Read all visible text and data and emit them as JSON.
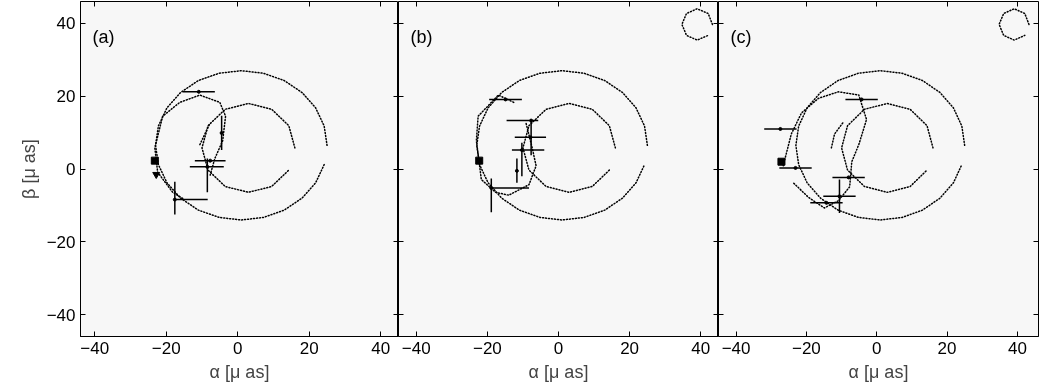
{
  "chart_data": [
    {
      "type": "scatter",
      "annotations": [
        "(a)"
      ],
      "xlabel": "α [μ as]",
      "ylabel": "β [μ as]",
      "xlim": [
        -44,
        45
      ],
      "ylim": [
        -46,
        46
      ],
      "xticks": [
        -40,
        -20,
        0,
        20,
        40
      ],
      "yticks": [
        -40,
        -20,
        0,
        20,
        40
      ],
      "grid": false,
      "series": [
        {
          "type": "line",
          "line_style": "dotted",
          "color": "#000000",
          "x": [
            25,
            24.2,
            21.8,
            18,
            13,
            7.2,
            1,
            -5.2,
            -11,
            -16,
            -19.8,
            -22.2,
            -23,
            -22.2,
            -19.8,
            -16,
            -11,
            -5.2,
            1,
            7.2,
            13,
            18,
            21.8,
            24.2
          ],
          "values": [
            6.5,
            11.8,
            16.8,
            21,
            24.3,
            26.3,
            27,
            26.3,
            24.3,
            21,
            16.8,
            11.8,
            6.5,
            1.2,
            -3.8,
            -8,
            -11.3,
            -13.3,
            -14,
            -13.3,
            -11.3,
            -8,
            -3.8,
            1.2
          ]
        },
        {
          "type": "line",
          "line_style": "dotted",
          "color": "#000000",
          "x": [
            16,
            14.3,
            9.5,
            3,
            -3.5,
            -8.3,
            -10,
            -8.3,
            -3.5,
            3,
            9.5,
            14.3
          ],
          "values": [
            5.8,
            11.9,
            16.4,
            18,
            16.4,
            11.9,
            5.8,
            -0.3,
            -4.8,
            -6.4,
            -4.8,
            -0.3
          ]
        },
        {
          "type": "line",
          "line_style": "dotted",
          "color": "#000000",
          "x": [
            -15.4,
            -18.2,
            -22.4,
            -23.2,
            -21,
            -16.2,
            -10.6,
            -5,
            -3.4,
            -4.2,
            -6.4,
            -7.8
          ],
          "values": [
            -8.1,
            -6.4,
            -0.9,
            5.8,
            14.5,
            18.3,
            20.3,
            18.3,
            14.5,
            7.8,
            2.9,
            -2
          ]
        },
        {
          "type": "line",
          "line_style": "dotted",
          "color": "#000000",
          "x": [
            -10.6,
            -7.8
          ],
          "values": [
            6.7,
            12.5
          ]
        },
        {
          "marker": "none",
          "color": "#000000",
          "x": [
            -10.9,
            -4.5,
            -7.7,
            -8.5,
            -17.6
          ],
          "values": [
            21.2,
            9.9,
            2.3,
            0.6,
            -8.4
          ],
          "xerrors": [
            4.5,
            null,
            4.3,
            [
              -13.4,
              -3.9
            ],
            [
              -17.6,
              -8.4
            ]
          ],
          "errors": [
            null,
            4.7,
            null,
            [
              -6.4,
              2.9
            ],
            [
              -12.5,
              -3.5
            ]
          ]
        },
        {
          "marker": "square",
          "color": "#000000",
          "x": [
            -23.2
          ],
          "values": [
            2.3
          ]
        },
        {
          "marker": "triangle",
          "color": "#000000",
          "x": [
            -22.8
          ],
          "values": [
            -1.5
          ]
        }
      ]
    },
    {
      "type": "scatter",
      "annotations": [
        "(b)"
      ],
      "xlabel": "α [μ as]",
      "xlim": [
        -45,
        45
      ],
      "ylim": [
        -46,
        46
      ],
      "xticks": [
        -40,
        -20,
        0,
        20,
        40
      ],
      "yticks": [
        -40,
        -20,
        0,
        20,
        40
      ],
      "tick_labels": "x",
      "grid": false,
      "series": [
        {
          "type": "line",
          "line_style": "dotted",
          "color": "#000000",
          "x": [
            25,
            24.2,
            21.8,
            18,
            13,
            7.2,
            1,
            -5.2,
            -11,
            -16,
            -19.8,
            -22.2,
            -23,
            -22.2,
            -19.8,
            -16,
            -11,
            -5.2,
            1,
            7.2,
            13,
            18,
            21.8,
            24.2
          ],
          "values": [
            6.5,
            11.8,
            16.8,
            21,
            24.3,
            26.3,
            27,
            26.3,
            24.3,
            21,
            16.8,
            11.8,
            6.5,
            1.2,
            -3.8,
            -8,
            -11.3,
            -13.3,
            -14,
            -13.3,
            -11.3,
            -8,
            -3.8,
            1.2
          ]
        },
        {
          "type": "line",
          "line_style": "dotted",
          "color": "#000000",
          "x": [
            16,
            14.3,
            9.5,
            3,
            -3.5,
            -8.3,
            -10,
            -8.3,
            -3.5,
            3,
            9.5,
            14.3
          ],
          "values": [
            5.8,
            11.9,
            16.4,
            18,
            16.4,
            11.9,
            5.8,
            -0.3,
            -4.8,
            -6.4,
            -4.8,
            -0.3
          ]
        },
        {
          "type": "line",
          "line_style": "dotted",
          "color": "#000000",
          "x": [
            -12.6,
            -16.9,
            -22.6,
            -23.1,
            -21.7,
            -17.7,
            -14,
            -8.3,
            -6.3,
            -7.4,
            -9.1
          ],
          "values": [
            18.3,
            20.3,
            14.5,
            7.8,
            -2.9,
            -6.4,
            -7.2,
            -4.3,
            0.9,
            5.8,
            12.5
          ]
        },
        {
          "type": "line",
          "line_style": "dotted",
          "color": "#000000",
          "x": [
            43.3,
            42.1,
            39,
            36,
            34.7,
            36,
            39,
            42.1
          ],
          "values": [
            39.7,
            42.7,
            44,
            42.7,
            39.7,
            36.7,
            35.4,
            36.7
          ]
        },
        {
          "marker": "none",
          "color": "#000000",
          "x": [
            -14.9,
            -7.7,
            -7.9,
            -10.3,
            -11.7,
            -18.9
          ],
          "values": [
            19.1,
            13.3,
            8.7,
            5.2,
            -0.5,
            -5.2
          ],
          "xerrors": [
            4.6,
            [
              -14.6,
              -5.7
            ],
            4.4,
            [
              -13.1,
              -4.0
            ],
            null,
            [
              -18.9,
              -8.3
            ]
          ],
          "errors": [
            null,
            [
              3.8,
              13.3
            ],
            null,
            [
              -2.0,
              7.2
            ],
            [
              -3.8,
              2.9
            ],
            [
              -11.9,
              -2.6
            ]
          ]
        },
        {
          "marker": "square",
          "color": "#000000",
          "x": [
            -22.3
          ],
          "values": [
            2.3
          ]
        }
      ]
    },
    {
      "type": "scatter",
      "annotations": [
        "(c)"
      ],
      "xlabel": "α [μ as]",
      "xlim": [
        -45,
        46
      ],
      "ylim": [
        -46,
        46
      ],
      "xticks": [
        -40,
        -20,
        0,
        20,
        40
      ],
      "yticks": [
        -40,
        -20,
        0,
        20,
        40
      ],
      "tick_labels": "x",
      "grid": false,
      "series": [
        {
          "type": "line",
          "line_style": "dotted",
          "color": "#000000",
          "x": [
            25,
            24.2,
            21.8,
            18,
            13,
            7.2,
            1,
            -5.2,
            -11,
            -16,
            -19.8,
            -22.2,
            -23,
            -22.2,
            -19.8,
            -16,
            -11,
            -5.2,
            1,
            7.2,
            13,
            18,
            21.8,
            24.2
          ],
          "values": [
            6.5,
            11.8,
            16.8,
            21,
            24.3,
            26.3,
            27,
            26.3,
            24.3,
            21,
            16.8,
            11.8,
            6.5,
            1.2,
            -3.8,
            -8,
            -11.3,
            -13.3,
            -14,
            -13.3,
            -11.3,
            -8,
            -3.8,
            1.2
          ]
        },
        {
          "type": "line",
          "line_style": "dotted",
          "color": "#000000",
          "x": [
            16,
            14.3,
            9.5,
            3,
            -3.5,
            -8.3,
            -10,
            -8.3,
            -3.5,
            3,
            9.5,
            14.3
          ],
          "values": [
            5.8,
            11.9,
            16.4,
            18,
            16.4,
            11.9,
            5.8,
            -0.3,
            -4.8,
            -6.4,
            -4.8,
            -0.3
          ]
        },
        {
          "type": "line",
          "line_style": "dotted",
          "color": "#000000",
          "x": [
            -26.6,
            -24.3,
            -21.4,
            -16.6,
            -10.9,
            -5.1,
            -2.9,
            -5.1,
            -7.1,
            -7.7,
            -10.9,
            -14.9,
            -19.4,
            -23.7
          ],
          "values": [
            0.9,
            9.6,
            15.4,
            19.4,
            21.2,
            20.3,
            13.6,
            6.7,
            2,
            -4.9,
            -8.7,
            -10.7,
            -7.8,
            -3.8
          ]
        },
        {
          "type": "line",
          "line_style": "dotted",
          "color": "#000000",
          "x": [
            -12.9,
            -12,
            -9.4
          ],
          "values": [
            5.8,
            9.6,
            13.0
          ]
        },
        {
          "type": "line",
          "line_style": "dotted",
          "color": "#000000",
          "x": [
            43.3,
            42.1,
            39.1,
            36.1,
            34.8,
            36.1,
            39.1,
            42.1
          ],
          "values": [
            39.7,
            42.7,
            44,
            42.7,
            39.7,
            36.7,
            35.4,
            36.7
          ]
        },
        {
          "marker": "none",
          "color": "#000000",
          "x": [
            -27.4,
            -23.1,
            -4.3,
            -8.0,
            -10.6,
            -14.3
          ],
          "values": [
            11.0,
            0.3,
            19.1,
            -2.3,
            -7.5,
            -9.3
          ],
          "xerrors": [
            4.6,
            4.6,
            4.6,
            4.6,
            4.6,
            4.6
          ],
          "errors": [
            null,
            null,
            null,
            null,
            4.6,
            null
          ]
        },
        {
          "marker": "square",
          "color": "#000000",
          "x": [
            -27.1
          ],
          "values": [
            2.0
          ]
        }
      ]
    }
  ]
}
